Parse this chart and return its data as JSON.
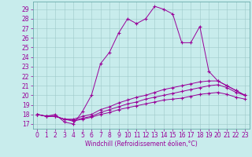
{
  "title": "",
  "xlabel": "Windchill (Refroidissement éolien,°C)",
  "bg_color": "#c8ecec",
  "line_color": "#990099",
  "xlim": [
    -0.5,
    23.5
  ],
  "ylim": [
    16.5,
    29.8
  ],
  "yticks": [
    17,
    18,
    19,
    20,
    21,
    22,
    23,
    24,
    25,
    26,
    27,
    28,
    29
  ],
  "xticks": [
    0,
    1,
    2,
    3,
    4,
    5,
    6,
    7,
    8,
    9,
    10,
    11,
    12,
    13,
    14,
    15,
    16,
    17,
    18,
    19,
    20,
    21,
    22,
    23
  ],
  "series1_y": [
    18.0,
    17.8,
    18.0,
    17.2,
    17.0,
    18.3,
    20.0,
    23.3,
    24.5,
    26.5,
    28.0,
    27.5,
    28.0,
    29.3,
    29.0,
    28.5,
    25.5,
    25.5,
    27.2,
    22.5,
    21.5,
    21.0,
    20.5,
    20.0
  ],
  "series2_y": [
    18.0,
    17.8,
    17.8,
    17.5,
    17.5,
    17.8,
    18.0,
    18.5,
    18.8,
    19.2,
    19.5,
    19.8,
    20.0,
    20.3,
    20.6,
    20.8,
    21.0,
    21.2,
    21.4,
    21.5,
    21.5,
    21.0,
    20.5,
    20.0
  ],
  "series3_y": [
    18.0,
    17.8,
    17.8,
    17.5,
    17.4,
    17.6,
    17.8,
    18.2,
    18.5,
    18.8,
    19.1,
    19.3,
    19.6,
    19.8,
    20.0,
    20.2,
    20.4,
    20.6,
    20.8,
    21.0,
    21.1,
    20.8,
    20.3,
    20.0
  ],
  "series4_y": [
    18.0,
    17.8,
    17.8,
    17.5,
    17.3,
    17.5,
    17.7,
    18.0,
    18.2,
    18.5,
    18.7,
    18.9,
    19.1,
    19.3,
    19.5,
    19.6,
    19.7,
    19.9,
    20.1,
    20.2,
    20.3,
    20.1,
    19.8,
    19.6
  ],
  "tick_fontsize": 5.5,
  "xlabel_fontsize": 5.5,
  "marker_size": 3,
  "line_width": 0.7
}
